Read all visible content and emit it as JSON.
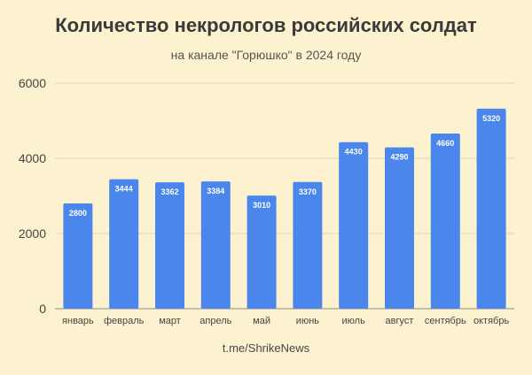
{
  "chart_data": {
    "type": "bar",
    "title": "Количество некрологов российских солдат",
    "subtitle": "на канале \"Горюшко\" в 2024 году",
    "source": "t.me/ShrikeNews",
    "xlabel": "",
    "ylabel": "",
    "categories": [
      "январь",
      "февраль",
      "март",
      "апрель",
      "май",
      "июнь",
      "июль",
      "август",
      "сентябрь",
      "октябрь"
    ],
    "values": [
      2800,
      3444,
      3362,
      3384,
      3010,
      3370,
      4430,
      4290,
      4660,
      5320
    ],
    "ylim": [
      0,
      6000
    ],
    "yticks": [
      0,
      2000,
      4000,
      6000
    ],
    "grid": true,
    "colors": {
      "bar": "#4a86ec",
      "grid": "#ddd6b8",
      "background": "#fdf2cf",
      "label_text": "#ffffff"
    }
  }
}
